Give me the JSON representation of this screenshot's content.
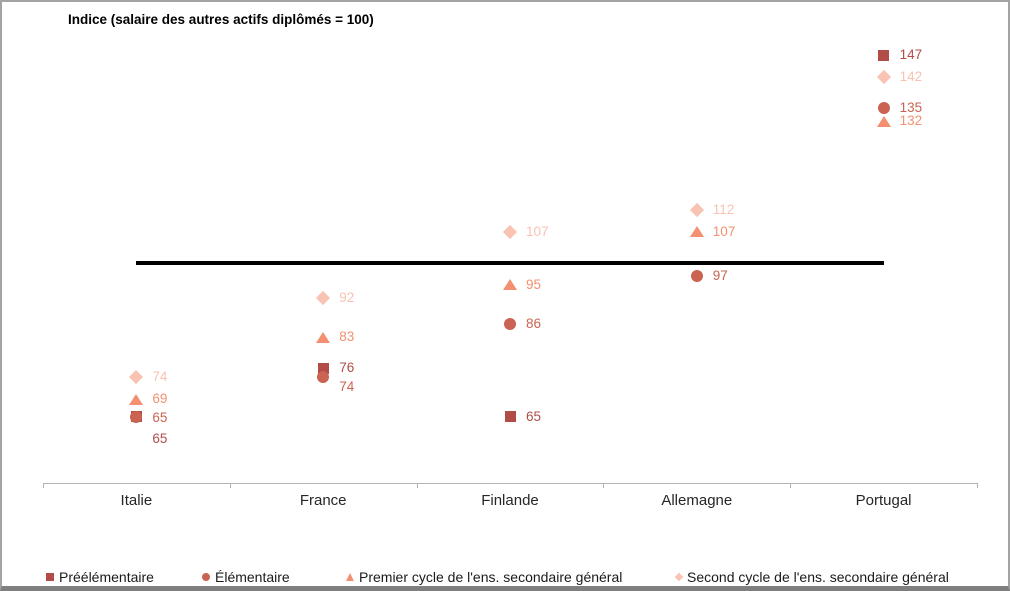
{
  "chart_data": {
    "type": "scatter",
    "title": "Indice (salaire des autres actifs diplômés = 100)",
    "categories": [
      "Italie",
      "France",
      "Finlande",
      "Allemagne",
      "Portugal"
    ],
    "ylabel": "",
    "ylim": [
      50,
      160
    ],
    "grid": false,
    "legend_position": "bottom",
    "reference_line": {
      "value": 100,
      "color": "#000000"
    },
    "series": [
      {
        "name": "Préélémentaire",
        "marker": "square",
        "color": "#B24C49",
        "values": [
          65,
          76,
          65,
          null,
          147
        ],
        "label_dy": [
          22,
          0,
          0,
          0,
          0
        ]
      },
      {
        "name": "Élémentaire",
        "marker": "circle",
        "color": "#CA6351",
        "values": [
          65,
          74,
          86,
          97,
          135
        ],
        "label_dy": [
          1,
          10,
          0,
          0,
          0
        ]
      },
      {
        "name": "Premier cycle de l'ens. secondaire général",
        "marker": "triangle",
        "color": "#F4906F",
        "values": [
          69,
          83,
          95,
          107,
          132
        ],
        "label_dy": [
          0,
          0,
          0,
          0,
          0
        ]
      },
      {
        "name": "Second cycle de l'ens. secondaire général",
        "marker": "diamond",
        "color": "#F8C3B2",
        "values": [
          74,
          92,
          107,
          112,
          142
        ],
        "label_dy": [
          0,
          0,
          0,
          0,
          0
        ]
      }
    ]
  }
}
